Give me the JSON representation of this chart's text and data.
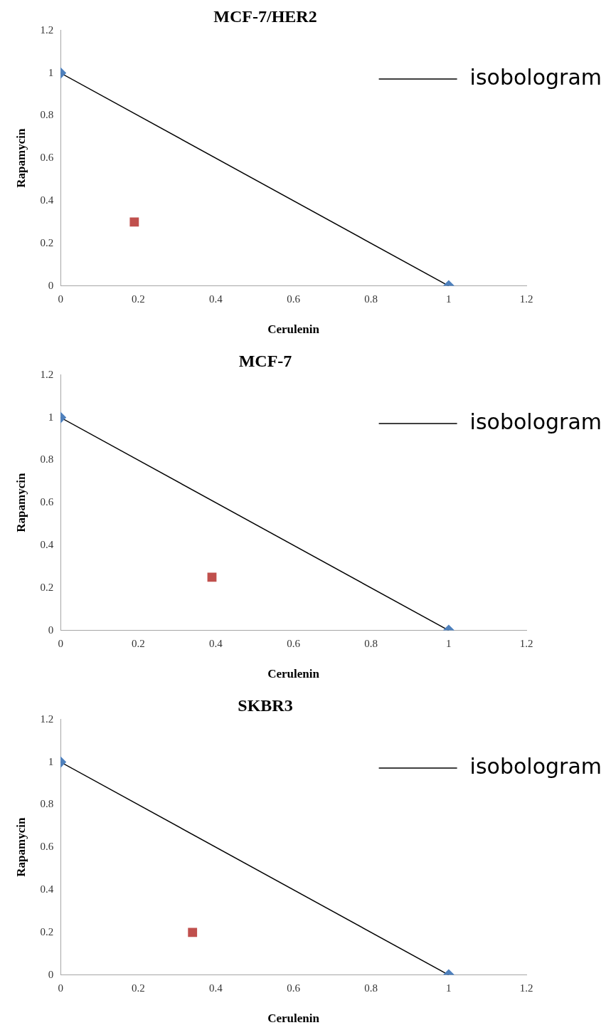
{
  "chart_data": [
    {
      "type": "scatter",
      "title": "MCF-7/HER2",
      "xlabel": "Cerulenin",
      "ylabel": "Rapamycin",
      "xlim": [
        0,
        1.2
      ],
      "ylim": [
        0,
        1.2
      ],
      "xticks": [
        0,
        0.2,
        0.4,
        0.6,
        0.8,
        1,
        1.2
      ],
      "yticks": [
        0,
        0.2,
        0.4,
        0.6,
        0.8,
        1,
        1.2
      ],
      "grid": false,
      "legend": "top right",
      "series": [
        {
          "name": "isobologram",
          "type": "line",
          "color": "#000000",
          "colors": [
            "#4f81bd",
            "#4f81bd"
          ],
          "marker": "diamond",
          "x": [
            0,
            1
          ],
          "values": [
            1,
            0
          ]
        },
        {
          "type": "scatter",
          "color": "#c0504d",
          "marker": "square",
          "x": [
            0.19
          ],
          "values": [
            0.3
          ]
        }
      ]
    },
    {
      "type": "scatter",
      "title": "MCF-7",
      "xlabel": "Cerulenin",
      "ylabel": "Rapamycin",
      "xlim": [
        0,
        1.2
      ],
      "ylim": [
        0,
        1.2
      ],
      "xticks": [
        0,
        0.2,
        0.4,
        0.6,
        0.8,
        1,
        1.2
      ],
      "yticks": [
        0,
        0.2,
        0.4,
        0.6,
        0.8,
        1,
        1.2
      ],
      "grid": false,
      "legend": "top right",
      "series": [
        {
          "name": "isobologram",
          "type": "line",
          "color": "#000000",
          "colors": [
            "#4f81bd",
            "#4f81bd"
          ],
          "marker": "diamond",
          "x": [
            0,
            1
          ],
          "values": [
            1,
            0
          ]
        },
        {
          "type": "scatter",
          "color": "#c0504d",
          "marker": "square",
          "x": [
            0.39
          ],
          "values": [
            0.25
          ]
        }
      ]
    },
    {
      "type": "scatter",
      "title": "SKBR3",
      "xlabel": "Cerulenin",
      "ylabel": "Rapamycin",
      "xlim": [
        0,
        1.2
      ],
      "ylim": [
        0,
        1.2
      ],
      "xticks": [
        0,
        0.2,
        0.4,
        0.6,
        0.8,
        1,
        1.2
      ],
      "yticks": [
        0,
        0.2,
        0.4,
        0.6,
        0.8,
        1,
        1.2
      ],
      "grid": false,
      "legend": "top right",
      "series": [
        {
          "name": "isobologram",
          "type": "line",
          "color": "#000000",
          "colors": [
            "#4f81bd",
            "#4f81bd"
          ],
          "marker": "diamond",
          "x": [
            0,
            1
          ],
          "values": [
            1,
            0
          ]
        },
        {
          "type": "scatter",
          "color": "#c0504d",
          "marker": "square",
          "x": [
            0.34
          ],
          "values": [
            0.2
          ]
        }
      ]
    }
  ]
}
